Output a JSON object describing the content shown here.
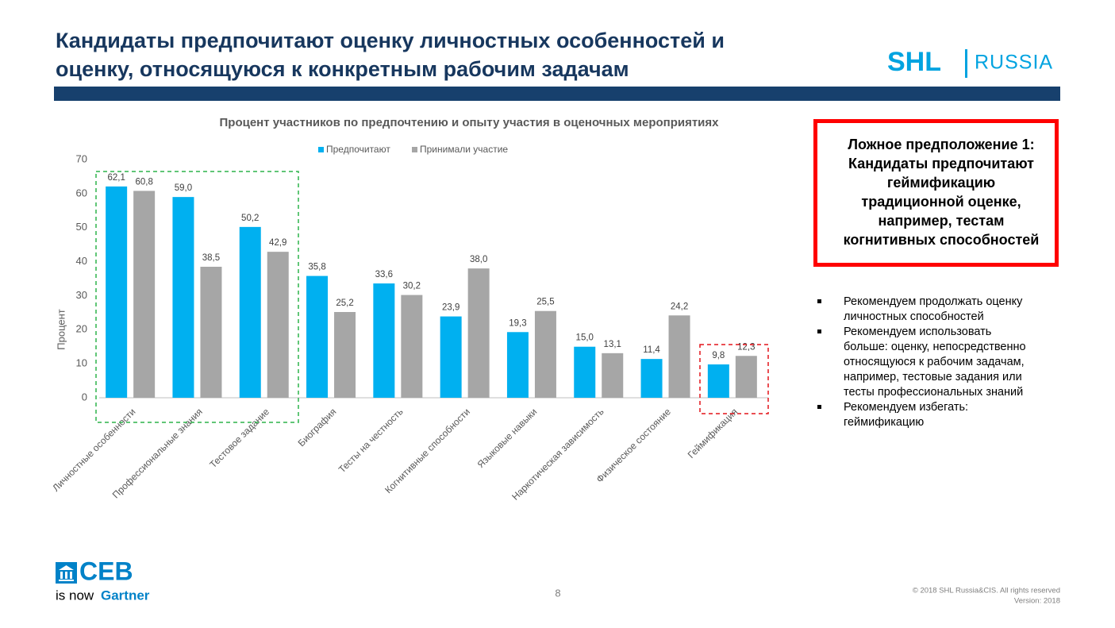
{
  "title": [
    "Кандидаты предпочитают оценку личностных особенностей и",
    "оценку, относящуюся к конкретным рабочим задачам"
  ],
  "logo": {
    "brand": "SHL",
    "region": "RUSSIA"
  },
  "chart_data": {
    "type": "bar",
    "title": "Процент участников по предпочтению и опыту участия в оценочных мероприятиях",
    "ylabel": "Процент",
    "categories": [
      "Личностные особенности",
      "Профессиональные знания",
      "Тестовое задание",
      "Биография",
      "Тесты на честность",
      "Когнитивные способности",
      "Языковые навыки",
      "Наркотическая зависимость",
      "Физическое состояние",
      "Геймификация"
    ],
    "series": [
      {
        "name": "Предпочитают",
        "color": "#00b0f0",
        "values": [
          62.1,
          59.0,
          50.2,
          35.8,
          33.6,
          23.9,
          19.3,
          15.0,
          11.4,
          9.8
        ],
        "value_labels": [
          "62,1",
          "59,0",
          "50,2",
          "35,8",
          "33,6",
          "23,9",
          "19,3",
          "15,0",
          "11,4",
          "9,8"
        ]
      },
      {
        "name": "Принимали участие",
        "color": "#a6a6a6",
        "values": [
          60.8,
          38.5,
          42.9,
          25.2,
          30.2,
          38.0,
          25.5,
          13.1,
          24.2,
          12.3
        ],
        "value_labels": [
          "60,8",
          "38,5",
          "42,9",
          "25,2",
          "30,2",
          "38,0",
          "25,5",
          "13,1",
          "24,2",
          "12,3"
        ]
      }
    ],
    "ylim": [
      0,
      70
    ],
    "yticks": [
      0,
      10,
      20,
      30,
      40,
      50,
      60,
      70
    ],
    "grid": false
  },
  "callout": [
    "Ложное предположение 1:",
    "Кандидаты предпочитают",
    "геймификацию",
    "традиционной оценке,",
    "например, тестам",
    "когнитивных способностей"
  ],
  "bullets": [
    [
      "Рекомендуем продолжать оценку",
      "личностных способностей"
    ],
    [
      "Рекомендуем  использовать",
      "больше: оценку, непосредственно",
      "относящуюся к рабочим задачам,",
      "например, тестовые задания или",
      "тесты профессиональных знаний"
    ],
    [
      "Рекомендуем избегать:",
      "геймификацию"
    ]
  ],
  "footer": {
    "ceb": "CEB",
    "is_now": "is now",
    "gartner": "Gartner",
    "page": "8",
    "copyright": "© 2018 SHL Russia&CIS. All rights reserved",
    "version": "Version: 2018"
  }
}
